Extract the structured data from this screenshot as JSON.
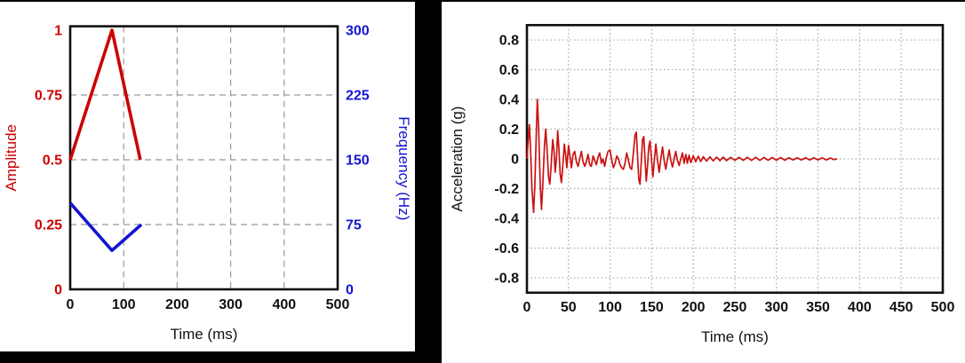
{
  "chart_data": [
    {
      "type": "line",
      "title": "",
      "xlabel": "Time (ms)",
      "x_axis": {
        "lim": [
          0,
          500
        ],
        "ticks": [
          0,
          100,
          200,
          300,
          400,
          500
        ]
      },
      "left_axis": {
        "label": "Amplitude",
        "color": "#cc0000",
        "lim": [
          0,
          1.015
        ],
        "ticks": [
          0,
          0.25,
          0.5,
          0.75,
          1
        ]
      },
      "right_axis": {
        "label": "Frequency (Hz)",
        "color": "#1414d2",
        "lim": [
          0,
          304.5
        ],
        "ticks": [
          0,
          75,
          150,
          225,
          300
        ]
      },
      "grid": "dashed",
      "grid_color": "#999999",
      "series": [
        {
          "name": "Amplitude",
          "axis": "left",
          "color": "#cc0000",
          "points": [
            [
              0,
              0.5
            ],
            [
              78,
              1.0
            ],
            [
              131,
              0.5
            ]
          ]
        },
        {
          "name": "Frequency",
          "axis": "right",
          "color": "#1414d2",
          "points": [
            [
              0,
              100
            ],
            [
              78,
              45
            ],
            [
              133,
              75
            ]
          ]
        }
      ]
    },
    {
      "type": "line",
      "title": "",
      "xlabel": "Time (ms)",
      "ylabel": "Acceleration (g)",
      "x_axis": {
        "lim": [
          0,
          500
        ],
        "ticks": [
          0,
          50,
          100,
          150,
          200,
          250,
          300,
          350,
          400,
          450,
          500
        ]
      },
      "y_axis": {
        "lim": [
          -0.9,
          0.9
        ],
        "ticks": [
          0.8,
          0.6,
          0.4,
          0.2,
          0,
          -0.2,
          -0.4,
          -0.6,
          -0.8
        ]
      },
      "grid": "dotted",
      "grid_color": "#aaaaaa",
      "series": [
        {
          "name": "Acceleration",
          "color": "#cc1111",
          "points": [
            [
              0,
              0
            ],
            [
              1.5,
              0.12
            ],
            [
              3,
              0.23
            ],
            [
              4.5,
              0.05
            ],
            [
              6,
              -0.2
            ],
            [
              8,
              -0.36
            ],
            [
              9.5,
              -0.18
            ],
            [
              11,
              0.12
            ],
            [
              12.5,
              0.4
            ],
            [
              14,
              0.22
            ],
            [
              16,
              -0.18
            ],
            [
              17.5,
              -0.34
            ],
            [
              19,
              -0.18
            ],
            [
              21,
              0.08
            ],
            [
              22.5,
              0.2
            ],
            [
              24,
              0.08
            ],
            [
              26,
              -0.12
            ],
            [
              27.5,
              -0.17
            ],
            [
              29,
              -0.06
            ],
            [
              31,
              0.13
            ],
            [
              32.5,
              0.06
            ],
            [
              34,
              -0.09
            ],
            [
              35.5,
              0
            ],
            [
              37,
              0.19
            ],
            [
              38.5,
              0.07
            ],
            [
              40,
              -0.1
            ],
            [
              41.5,
              -0.16
            ],
            [
              43,
              -0.06
            ],
            [
              45,
              0.1
            ],
            [
              46.5,
              0.03
            ],
            [
              48,
              -0.06
            ],
            [
              50,
              0.09
            ],
            [
              51.5,
              0.03
            ],
            [
              53.5,
              -0.06
            ],
            [
              55.5,
              0.03
            ],
            [
              57.5,
              0.05
            ],
            [
              59.5,
              -0.02
            ],
            [
              61.5,
              -0.05
            ],
            [
              63.5,
              0
            ],
            [
              65.5,
              0.05
            ],
            [
              67.5,
              -0.02
            ],
            [
              69.5,
              -0.05
            ],
            [
              71.5,
              -0.02
            ],
            [
              73.5,
              0.03
            ],
            [
              75.5,
              -0.04
            ],
            [
              77.5,
              -0.05
            ],
            [
              79.5,
              0.02
            ],
            [
              81.5,
              -0.01
            ],
            [
              83.5,
              -0.04
            ],
            [
              85.5,
              0.01
            ],
            [
              87.5,
              0.04
            ],
            [
              89.5,
              -0.03
            ],
            [
              91.5,
              0
            ],
            [
              93.5,
              -0.05
            ],
            [
              95.5,
              0.01
            ],
            [
              97.5,
              0.05
            ],
            [
              100,
              0.06
            ],
            [
              102,
              -0.01
            ],
            [
              104,
              -0.06
            ],
            [
              106,
              -0.03
            ],
            [
              108,
              0.02
            ],
            [
              110,
              0
            ],
            [
              112,
              -0.04
            ],
            [
              114,
              -0.06
            ],
            [
              116,
              -0.07
            ],
            [
              118,
              -0.03
            ],
            [
              120,
              0.04
            ],
            [
              122,
              -0.01
            ],
            [
              124,
              -0.06
            ],
            [
              126,
              -0.07
            ],
            [
              128,
              0.04
            ],
            [
              130,
              0.16
            ],
            [
              131.5,
              0.18
            ],
            [
              133,
              0.02
            ],
            [
              134.5,
              -0.14
            ],
            [
              136,
              -0.17
            ],
            [
              137.5,
              -0.02
            ],
            [
              139,
              0.13
            ],
            [
              140.5,
              0.15
            ],
            [
              142,
              0
            ],
            [
              143.5,
              -0.15
            ],
            [
              145,
              -0.05
            ],
            [
              146.5,
              0.08
            ],
            [
              148,
              0.12
            ],
            [
              150,
              -0.02
            ],
            [
              151.5,
              -0.12
            ],
            [
              153,
              -0.02
            ],
            [
              155,
              0.1
            ],
            [
              157,
              -0.01
            ],
            [
              159,
              -0.09
            ],
            [
              161,
              0
            ],
            [
              163,
              0.08
            ],
            [
              165,
              -0.01
            ],
            [
              167,
              -0.07
            ],
            [
              169,
              0
            ],
            [
              171,
              0.06
            ],
            [
              173,
              -0.01
            ],
            [
              175,
              -0.055
            ],
            [
              177,
              0
            ],
            [
              179,
              0.05
            ],
            [
              181,
              -0.01
            ],
            [
              183,
              -0.045
            ],
            [
              185,
              0
            ],
            [
              187,
              0.04
            ],
            [
              189,
              -0.03
            ],
            [
              191,
              0.03
            ],
            [
              193,
              -0.03
            ],
            [
              195,
              0.025
            ],
            [
              197,
              -0.025
            ],
            [
              200,
              0.02
            ],
            [
              203,
              -0.02
            ],
            [
              206,
              0.018
            ],
            [
              209,
              -0.018
            ],
            [
              212,
              0.015
            ],
            [
              216,
              -0.015
            ],
            [
              220,
              0.013
            ],
            [
              224,
              -0.013
            ],
            [
              228,
              0.012
            ],
            [
              232,
              -0.012
            ],
            [
              236,
              0.012
            ],
            [
              240,
              -0.012
            ],
            [
              245,
              0.01
            ],
            [
              250,
              -0.01
            ],
            [
              255,
              0.01
            ],
            [
              260,
              -0.01
            ],
            [
              265,
              0.01
            ],
            [
              270,
              -0.01
            ],
            [
              275,
              0.01
            ],
            [
              280,
              -0.01
            ],
            [
              285,
              0.009
            ],
            [
              290,
              -0.009
            ],
            [
              295,
              0.009
            ],
            [
              300,
              -0.009
            ],
            [
              305,
              0.009
            ],
            [
              310,
              -0.009
            ],
            [
              315,
              0.008
            ],
            [
              320,
              -0.008
            ],
            [
              325,
              0.008
            ],
            [
              330,
              -0.008
            ],
            [
              335,
              0.008
            ],
            [
              340,
              -0.008
            ],
            [
              345,
              0.007
            ],
            [
              350,
              -0.007
            ],
            [
              355,
              0.007
            ],
            [
              360,
              -0.007
            ],
            [
              365,
              0.006
            ],
            [
              369,
              -0.005
            ],
            [
              373,
              0
            ]
          ]
        }
      ]
    }
  ]
}
